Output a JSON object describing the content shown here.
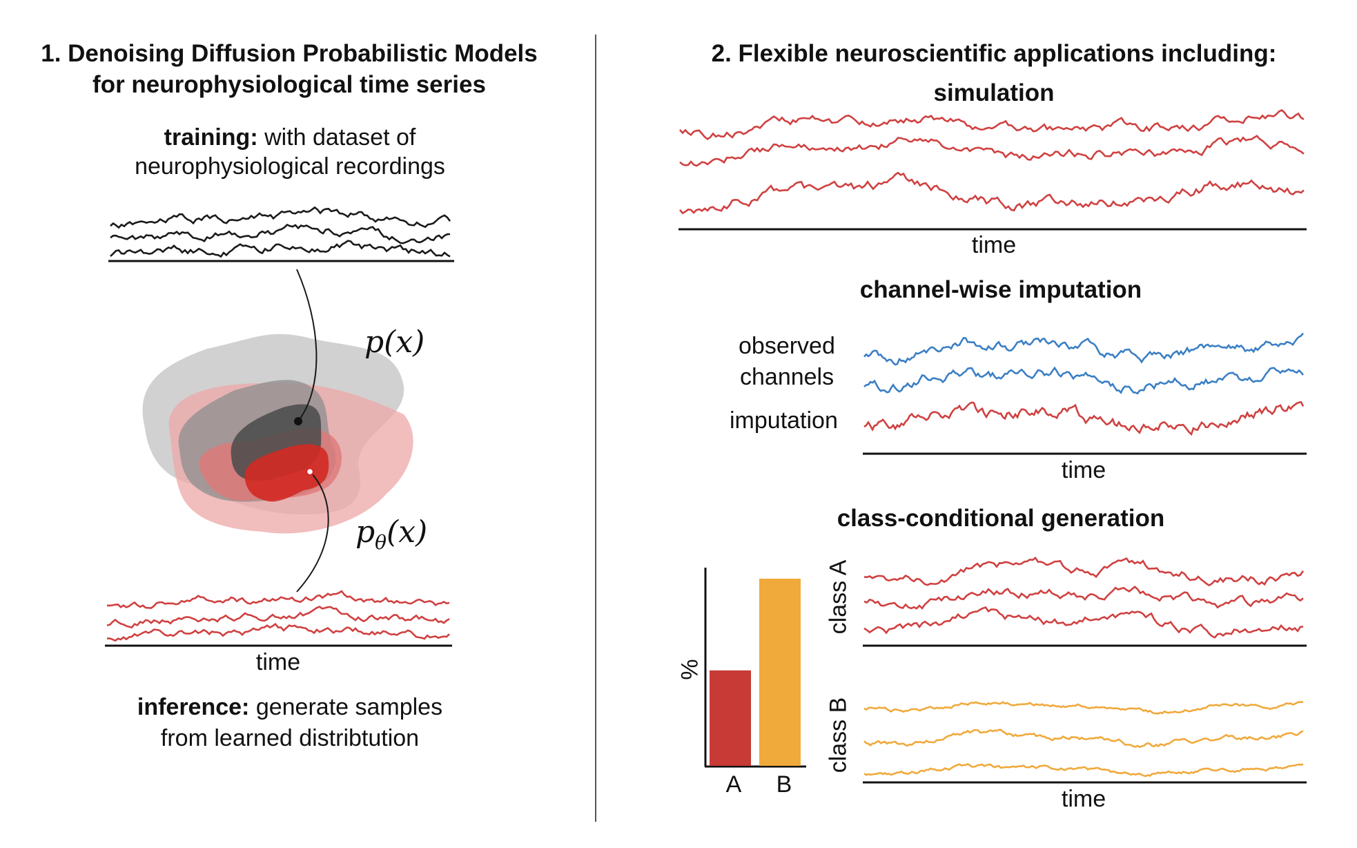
{
  "left_panel": {
    "title_line1": "1.  Denoising Diffusion Probabilistic Models",
    "title_line2": "for neurophysiological time series",
    "training_bold": "training:",
    "training_text": " with dataset of",
    "training_line2": "neurophysiological recordings",
    "p_x": "p(x)",
    "p_theta_base": "p",
    "p_theta_sub": "θ",
    "p_theta_rest": "(x)",
    "time_label": "time",
    "inference_bold": "inference:",
    "inference_text": " generate samples",
    "inference_line2": "from learned distribtution"
  },
  "right_panel": {
    "title": "2.  Flexible neuroscientific applications including:",
    "simulation_title": "simulation",
    "simulation_time": "time",
    "imputation_title": "channel-wise imputation",
    "observed_line1": "observed",
    "observed_line2": "channels",
    "imputation_label": "imputation",
    "imputation_time": "time",
    "class_title": "class-conditional generation",
    "class_a_label": "class A",
    "class_b_label": "class B",
    "class_time": "time"
  },
  "chart_data": {
    "type": "bar",
    "ylabel": "%",
    "categories": [
      "A",
      "B"
    ],
    "values": [
      0.51,
      1.0
    ],
    "colors": [
      "#c73a35",
      "#f0a93b"
    ]
  },
  "colors": {
    "black_trace": "#1a1a1a",
    "red_trace": "#d04040",
    "blue_trace": "#3b7fc4",
    "orange_trace": "#f0a93b",
    "axis": "#111111"
  }
}
